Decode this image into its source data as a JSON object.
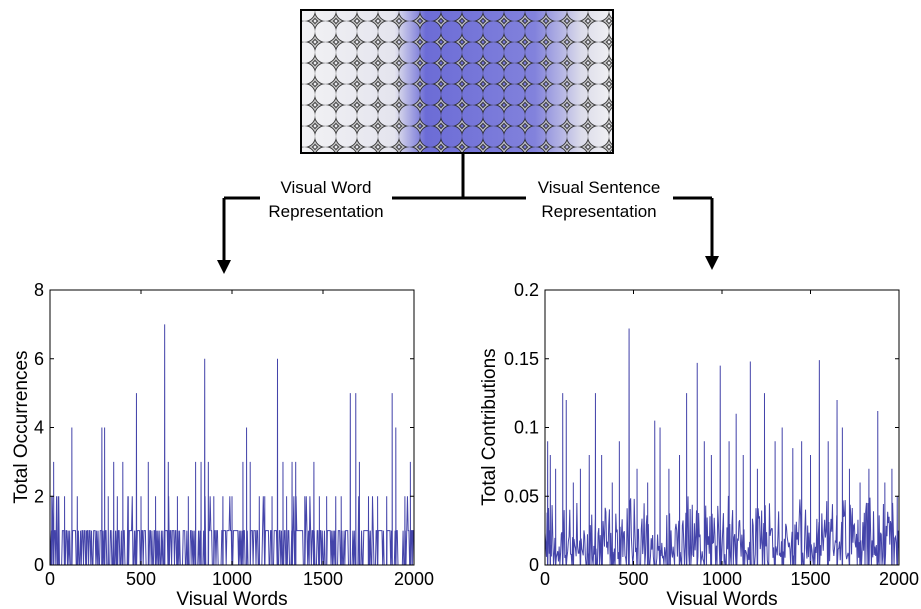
{
  "branches": {
    "left_line1": "Visual Word",
    "left_line2": "Representation",
    "right_line1": "Visual Sentence",
    "right_line2": "Representation"
  },
  "colors": {
    "series": "#4444aa",
    "tile_dark": "#2a2a2a",
    "tile_light": "#c8c8c8",
    "tile_purple": "#5a5ad0"
  },
  "chart_data": [
    {
      "type": "line",
      "xlabel": "Visual Words",
      "ylabel": "Total Occurrences",
      "xlim": [
        0,
        2000
      ],
      "ylim": [
        0,
        8
      ],
      "xticks": [
        0,
        500,
        1000,
        1500,
        2000
      ],
      "yticks": [
        0,
        2,
        4,
        6,
        8
      ],
      "xtick_labels": [
        "0",
        "500",
        "1000",
        "1500",
        "2000"
      ],
      "ytick_labels": [
        "0",
        "2",
        "4",
        "6",
        "8"
      ],
      "grid": false,
      "spikes": [
        [
          10,
          2
        ],
        [
          20,
          3
        ],
        [
          45,
          2
        ],
        [
          80,
          2
        ],
        [
          120,
          4
        ],
        [
          150,
          2
        ],
        [
          200,
          1
        ],
        [
          285,
          4
        ],
        [
          300,
          4
        ],
        [
          320,
          2
        ],
        [
          350,
          3
        ],
        [
          370,
          2
        ],
        [
          400,
          3
        ],
        [
          430,
          2
        ],
        [
          475,
          5
        ],
        [
          500,
          2
        ],
        [
          540,
          3
        ],
        [
          580,
          2
        ],
        [
          630,
          7
        ],
        [
          650,
          3
        ],
        [
          700,
          2
        ],
        [
          760,
          2
        ],
        [
          800,
          3
        ],
        [
          830,
          3
        ],
        [
          850,
          6
        ],
        [
          870,
          3
        ],
        [
          900,
          2
        ],
        [
          950,
          2
        ],
        [
          1000,
          2
        ],
        [
          1060,
          3
        ],
        [
          1080,
          4
        ],
        [
          1100,
          3
        ],
        [
          1150,
          2
        ],
        [
          1180,
          2
        ],
        [
          1220,
          2
        ],
        [
          1250,
          6
        ],
        [
          1280,
          3
        ],
        [
          1300,
          2
        ],
        [
          1330,
          3
        ],
        [
          1350,
          3
        ],
        [
          1400,
          2
        ],
        [
          1450,
          3
        ],
        [
          1480,
          2
        ],
        [
          1520,
          2
        ],
        [
          1570,
          2
        ],
        [
          1600,
          2
        ],
        [
          1650,
          5
        ],
        [
          1680,
          5
        ],
        [
          1700,
          3
        ],
        [
          1750,
          2
        ],
        [
          1800,
          2
        ],
        [
          1850,
          2
        ],
        [
          1880,
          5
        ],
        [
          1900,
          4
        ],
        [
          1950,
          2
        ],
        [
          1980,
          3
        ],
        [
          1990,
          1
        ]
      ]
    },
    {
      "type": "line",
      "xlabel": "Visual Words",
      "ylabel": "Total Contributions",
      "xlim": [
        0,
        2000
      ],
      "ylim": [
        0,
        0.2
      ],
      "xticks": [
        0,
        500,
        1000,
        1500,
        2000
      ],
      "yticks": [
        0,
        0.05,
        0.1,
        0.15,
        0.2
      ],
      "xtick_labels": [
        "0",
        "500",
        "1000",
        "1500",
        "2000"
      ],
      "ytick_labels": [
        "0",
        "0.05",
        "0.1",
        "0.15",
        "0.2"
      ],
      "grid": false,
      "spikes": [
        [
          15,
          0.09
        ],
        [
          30,
          0.08
        ],
        [
          60,
          0.07
        ],
        [
          100,
          0.125
        ],
        [
          120,
          0.12
        ],
        [
          160,
          0.06
        ],
        [
          200,
          0.07
        ],
        [
          250,
          0.08
        ],
        [
          285,
          0.125
        ],
        [
          320,
          0.08
        ],
        [
          380,
          0.06
        ],
        [
          420,
          0.09
        ],
        [
          475,
          0.172
        ],
        [
          520,
          0.07
        ],
        [
          580,
          0.06
        ],
        [
          620,
          0.105
        ],
        [
          650,
          0.1
        ],
        [
          700,
          0.07
        ],
        [
          760,
          0.08
        ],
        [
          800,
          0.125
        ],
        [
          860,
          0.147
        ],
        [
          900,
          0.09
        ],
        [
          940,
          0.08
        ],
        [
          990,
          0.145
        ],
        [
          1040,
          0.09
        ],
        [
          1080,
          0.11
        ],
        [
          1120,
          0.08
        ],
        [
          1160,
          0.148
        ],
        [
          1200,
          0.07
        ],
        [
          1240,
          0.125
        ],
        [
          1300,
          0.09
        ],
        [
          1340,
          0.1
        ],
        [
          1400,
          0.085
        ],
        [
          1450,
          0.09
        ],
        [
          1500,
          0.08
        ],
        [
          1550,
          0.149
        ],
        [
          1600,
          0.09
        ],
        [
          1650,
          0.12
        ],
        [
          1680,
          0.1
        ],
        [
          1720,
          0.07
        ],
        [
          1780,
          0.06
        ],
        [
          1830,
          0.07
        ],
        [
          1880,
          0.112
        ],
        [
          1920,
          0.06
        ],
        [
          1960,
          0.07
        ],
        [
          1990,
          0.05
        ]
      ]
    }
  ]
}
